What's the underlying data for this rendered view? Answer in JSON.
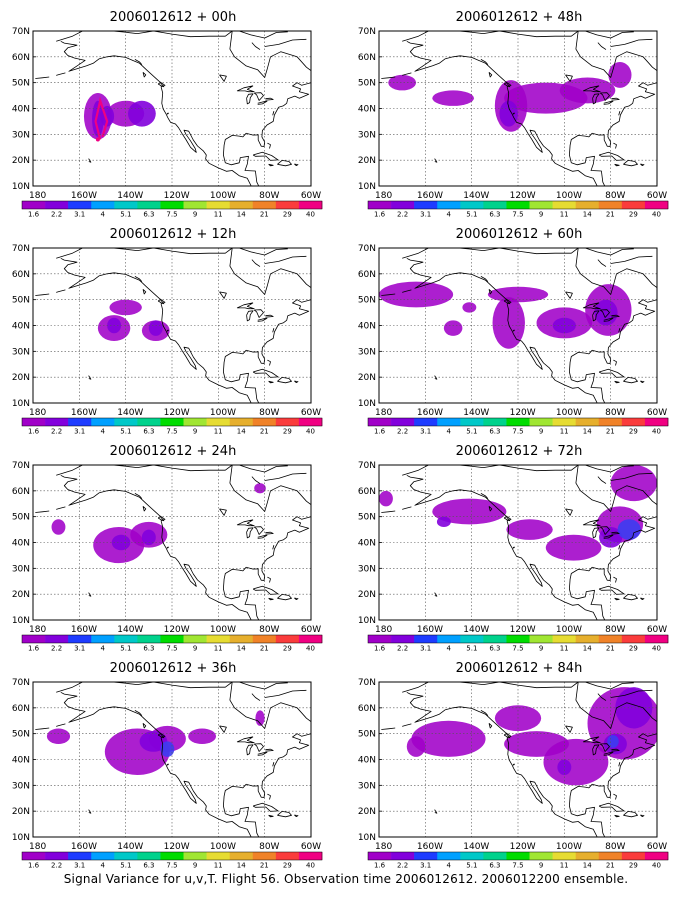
{
  "caption": "Signal Variance for u,v,T. Flight 56. Observation time 2006012612. 2006012200 ensemble.",
  "lat_labels": [
    "70N",
    "60N",
    "50N",
    "40N",
    "30N",
    "20N",
    "10N"
  ],
  "lon_labels": [
    "180",
    "160W",
    "140W",
    "120W",
    "100W",
    "80W",
    "60W"
  ],
  "colorbar": {
    "labels": [
      "1.6",
      "2.2",
      "3.1",
      "4",
      "5.1",
      "6.3",
      "7.5",
      "9",
      "11",
      "14",
      "21",
      "29",
      "40"
    ],
    "colors": [
      "#a000c8",
      "#8200dc",
      "#1e3cff",
      "#00a0ff",
      "#00c8c8",
      "#00d28c",
      "#00dc00",
      "#a0e632",
      "#e6dc32",
      "#e6af2d",
      "#f08228",
      "#fa3c3c",
      "#f00082"
    ]
  },
  "panels": [
    {
      "id": "p00",
      "title": "2006012612 + 00h"
    },
    {
      "id": "p48",
      "title": "2006012612 + 48h"
    },
    {
      "id": "p12",
      "title": "2006012612 + 12h"
    },
    {
      "id": "p60",
      "title": "2006012612 + 60h"
    },
    {
      "id": "p24",
      "title": "2006012612 + 24h"
    },
    {
      "id": "p72",
      "title": "2006012612 + 72h"
    },
    {
      "id": "p36",
      "title": "2006012612 + 36h"
    },
    {
      "id": "p84",
      "title": "2006012612 + 84h"
    }
  ],
  "legend_fill_colors": {
    "light": "#a000c8",
    "mid": "#8200dc",
    "dark": "#3c3cf0",
    "marker": "#f00082"
  }
}
